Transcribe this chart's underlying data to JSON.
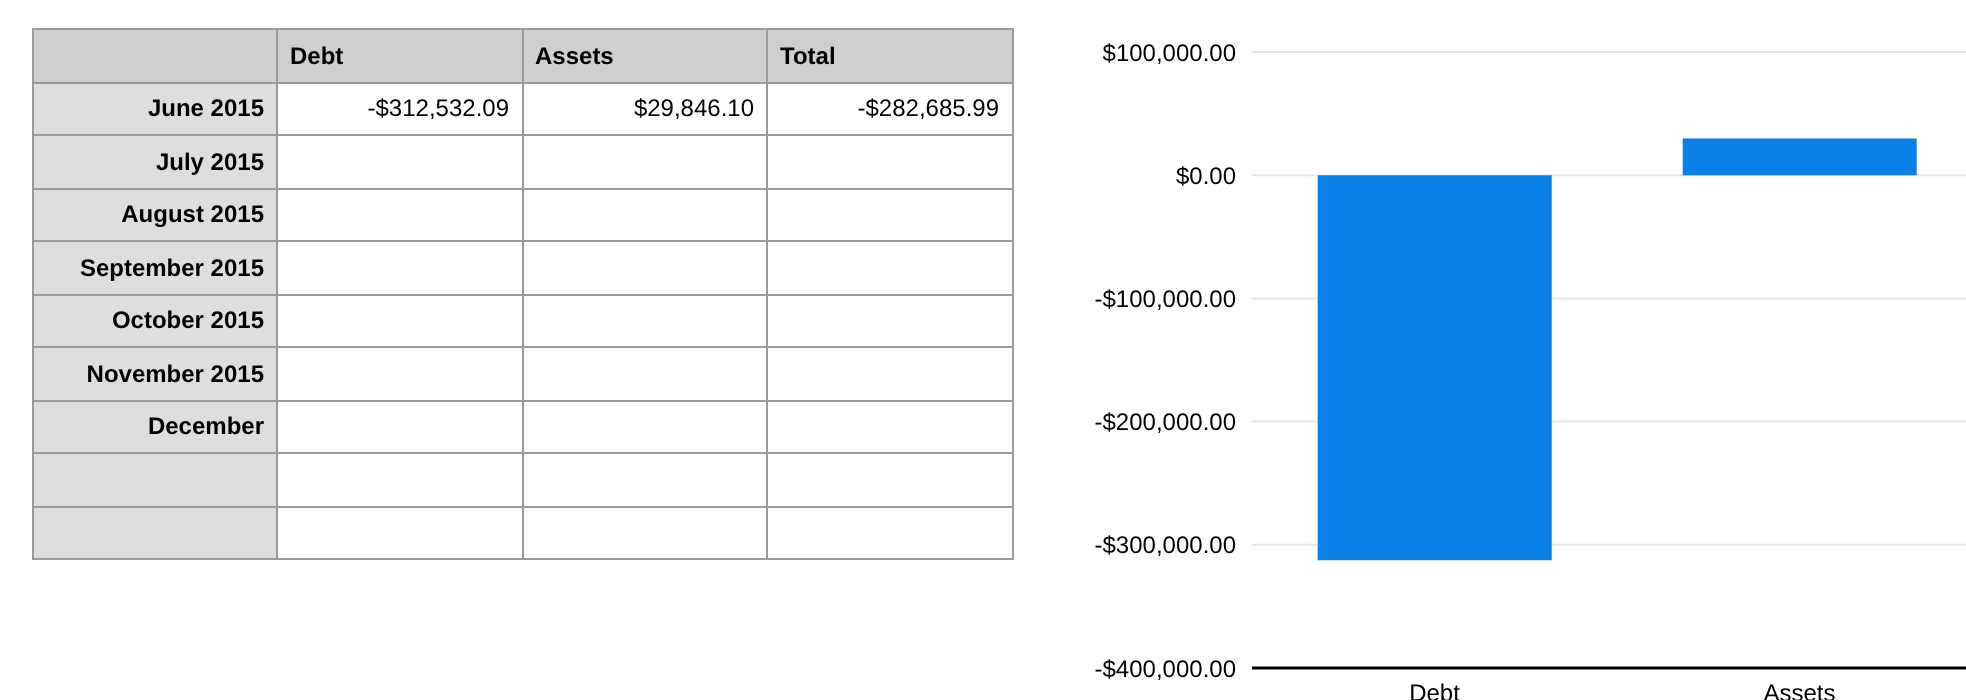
{
  "chart_data": [
    {
      "type": "other",
      "categories": [
        "Debt",
        "Assets",
        "Total"
      ],
      "y_categories": [
        "June 2015",
        "July 2015",
        "August 2015",
        "September 2015",
        "October 2015",
        "November 2015",
        "December",
        null,
        null
      ],
      "cell_labels": [
        [
          "-$312,532.09",
          "$29,846.10",
          "-$282,685.99"
        ],
        [
          null,
          null,
          null
        ],
        [
          null,
          null,
          null
        ],
        [
          null,
          null,
          null
        ],
        [
          null,
          null,
          null
        ],
        [
          null,
          null,
          null
        ],
        [
          null,
          null,
          null
        ],
        [
          null,
          null,
          null
        ],
        [
          null,
          null,
          null
        ]
      ]
    },
    {
      "type": "bar",
      "categories": [
        "Debt",
        "Assets"
      ],
      "values": [
        -312532.09,
        29846.1
      ],
      "colors": [
        "#0a80e6",
        "#0a80e6"
      ],
      "ylim": [
        -400000,
        100000
      ],
      "yticks": [
        {
          "value": -400000,
          "label": "-$400,000.00"
        },
        {
          "value": -300000,
          "label": "-$300,000.00"
        },
        {
          "value": -200000,
          "label": "-$200,000.00"
        },
        {
          "value": -100000,
          "label": "-$100,000.00"
        },
        {
          "value": 0,
          "label": "$0.00"
        },
        {
          "value": 100000,
          "label": "$100,000.00"
        }
      ],
      "grid": "y"
    }
  ]
}
